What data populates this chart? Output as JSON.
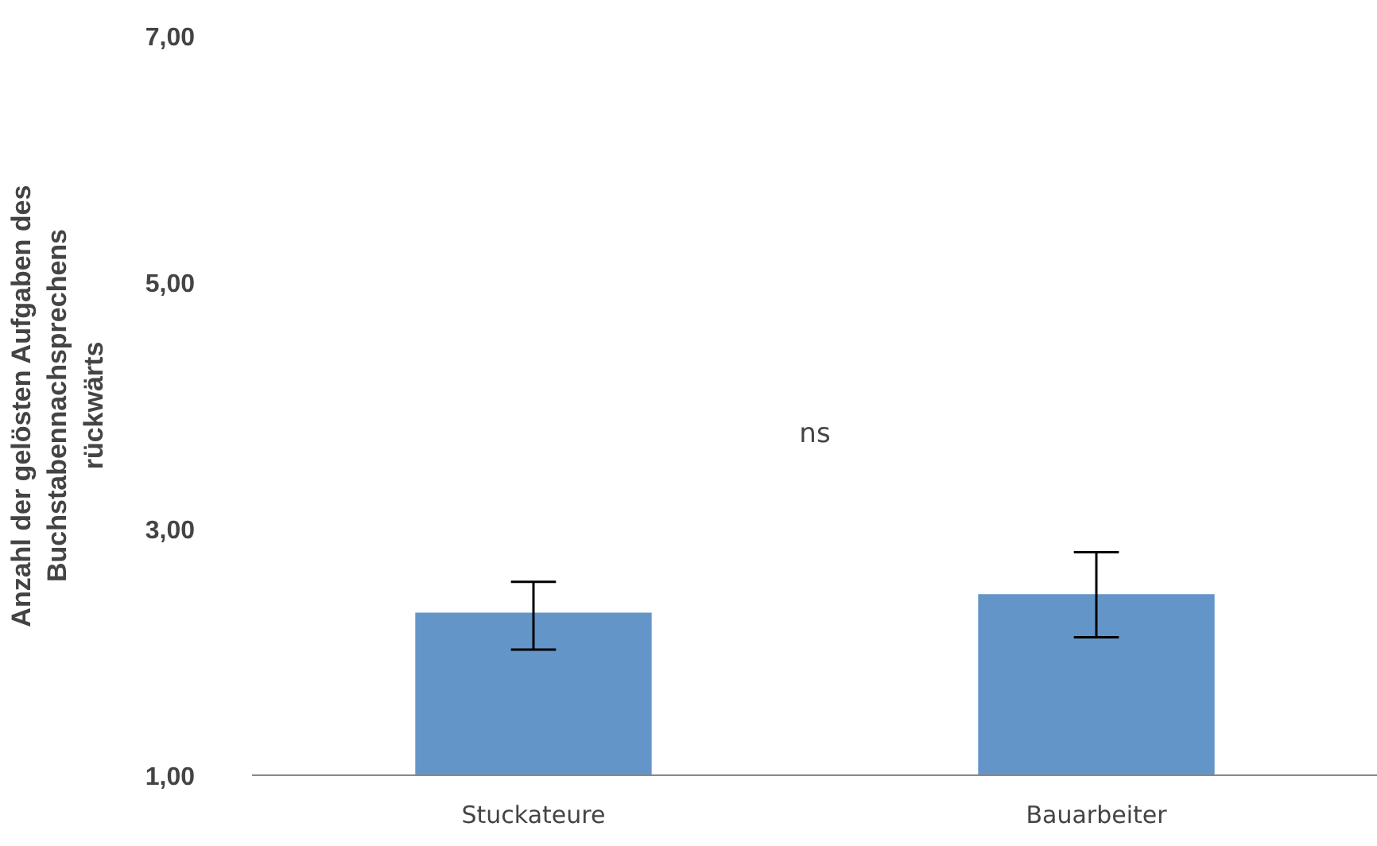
{
  "chart_data": {
    "type": "bar",
    "ylabel": "Anzahl der gelösten Aufgaben des\nBuchstabennachsprechens\nrückwärts",
    "categories": [
      "Stuckateure",
      "Bauarbeiter"
    ],
    "values": [
      2.32,
      2.47
    ],
    "errors": [
      [
        2.02,
        2.57
      ],
      [
        2.12,
        2.81
      ]
    ],
    "color": "#6495c8",
    "ylim": [
      1,
      7
    ],
    "yticks": [
      {
        "value": 1,
        "label": "1,00"
      },
      {
        "value": 3,
        "label": "3,00"
      },
      {
        "value": 5,
        "label": "5,00"
      },
      {
        "value": 7,
        "label": "7,00"
      }
    ],
    "annotations": [
      "ns"
    ]
  }
}
